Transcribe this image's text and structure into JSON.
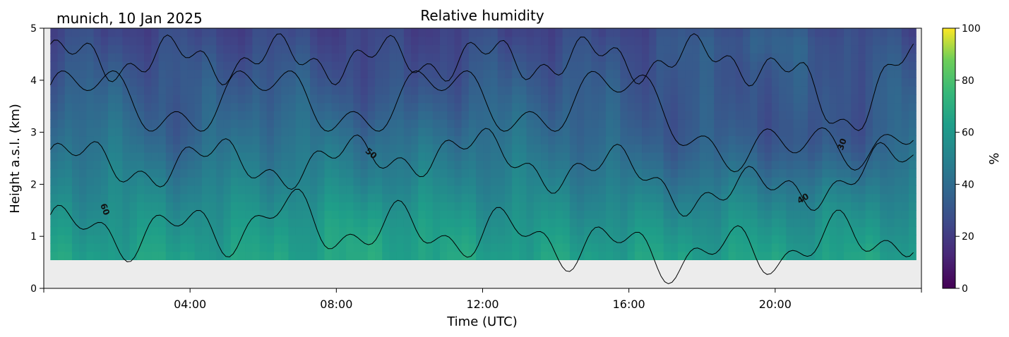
{
  "chart_data": {
    "type": "heatmap",
    "title": "Relative humidity",
    "subtitle": "munich, 10 Jan 2025",
    "xlabel": "Time (UTC)",
    "ylabel": "Height a.s.l. (km)",
    "xlim": [
      0,
      24
    ],
    "ylim": [
      0,
      5
    ],
    "x_ticks": [
      4,
      8,
      12,
      16,
      20
    ],
    "x_tick_labels": [
      "04:00",
      "08:00",
      "12:00",
      "16:00",
      "20:00"
    ],
    "y_ticks": [
      0,
      1,
      2,
      3,
      4,
      5
    ],
    "y_tick_labels": [
      "0",
      "1",
      "2",
      "3",
      "4",
      "5"
    ],
    "data_bottom_km": 0.55,
    "colorbar": {
      "label": "%",
      "range": [
        0,
        100
      ],
      "ticks": [
        0,
        20,
        40,
        60,
        80,
        100
      ],
      "tick_labels": [
        "0",
        "20",
        "40",
        "60",
        "80",
        "100"
      ],
      "colormap": "viridis"
    },
    "contour_levels": [
      30,
      40,
      50,
      60
    ],
    "contour_labels": [
      {
        "text": "60",
        "x": 1.6,
        "y": 1.5,
        "rotate": 70
      },
      {
        "text": "50",
        "x": 8.9,
        "y": 2.55,
        "rotate": 40
      },
      {
        "text": "40",
        "x": 20.8,
        "y": 1.68,
        "rotate": -30
      },
      {
        "text": "30",
        "x": 21.9,
        "y": 2.75,
        "rotate": -70
      }
    ],
    "no_data_color": "#ececec",
    "grid": false
  }
}
